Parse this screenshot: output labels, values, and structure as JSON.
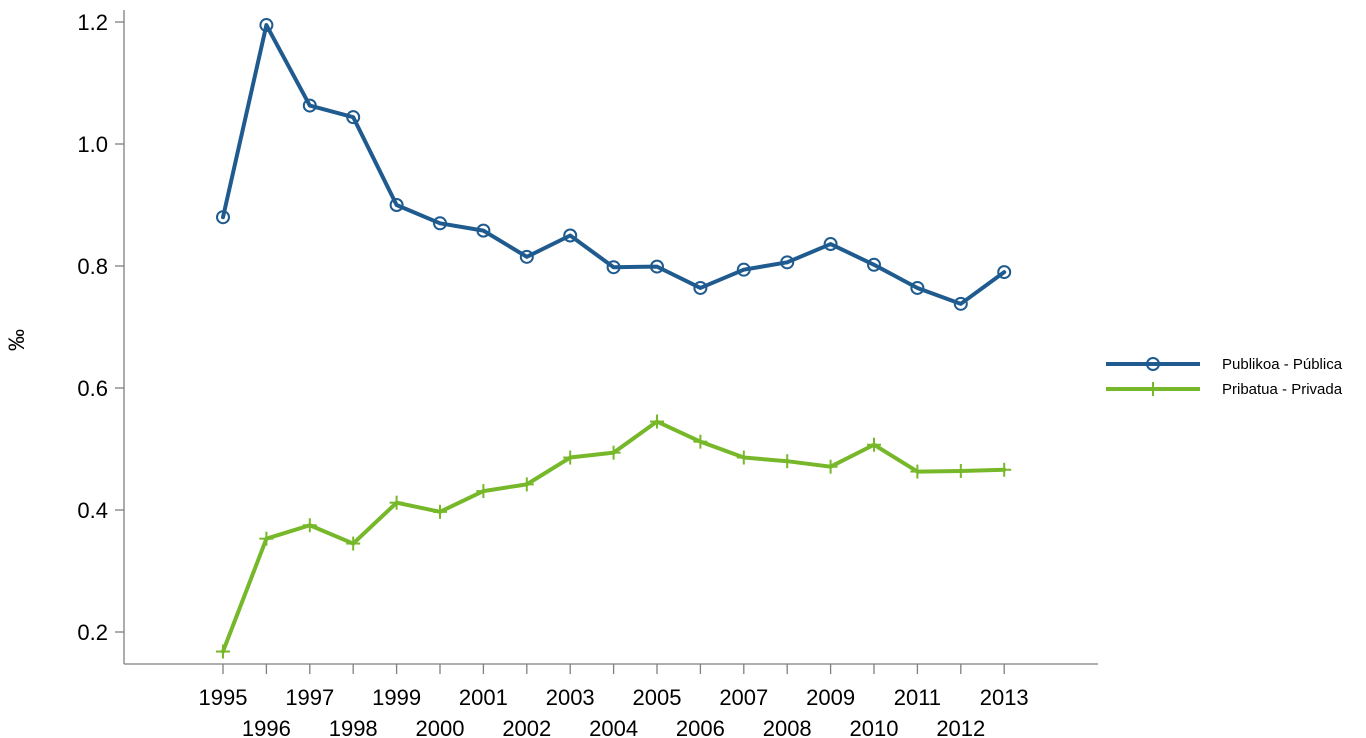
{
  "chart_data": {
    "type": "line",
    "title": "",
    "xlabel": "",
    "ylabel": "‰",
    "x": [
      1995,
      1996,
      1997,
      1998,
      1999,
      2000,
      2001,
      2002,
      2003,
      2004,
      2005,
      2006,
      2007,
      2008,
      2009,
      2010,
      2011,
      2012,
      2013
    ],
    "ylim": [
      0.13,
      1.24
    ],
    "yticks": [
      "0.2",
      "0.4",
      "0.6",
      "0.8",
      "1.0",
      "1.2"
    ],
    "ytick_values": [
      0.2,
      0.4,
      0.6,
      0.8,
      1.0,
      1.2
    ],
    "xtick_labels": [
      "1995",
      "1996",
      "1997",
      "1998",
      "1999",
      "2000",
      "2001",
      "2002",
      "2003",
      "2004",
      "2005",
      "2006",
      "2007",
      "2008",
      "2009",
      "2010",
      "2011",
      "2012",
      "2013"
    ],
    "grid": false,
    "legend_position": "right",
    "series": [
      {
        "name": "Publikoa - Pública",
        "color": "#1f5b8e",
        "marker": "circle",
        "values": [
          0.88,
          1.195,
          1.063,
          1.044,
          0.9,
          0.87,
          0.858,
          0.815,
          0.85,
          0.798,
          0.799,
          0.764,
          0.794,
          0.806,
          0.836,
          0.802,
          0.764,
          0.738,
          0.79
        ]
      },
      {
        "name": "Pribatua - Privada",
        "color": "#76b82a",
        "marker": "plus",
        "values": [
          0.168,
          0.353,
          0.375,
          0.345,
          0.412,
          0.397,
          0.431,
          0.442,
          0.486,
          0.494,
          0.545,
          0.512,
          0.486,
          0.48,
          0.471,
          0.507,
          0.463,
          0.464,
          0.466
        ]
      }
    ]
  }
}
